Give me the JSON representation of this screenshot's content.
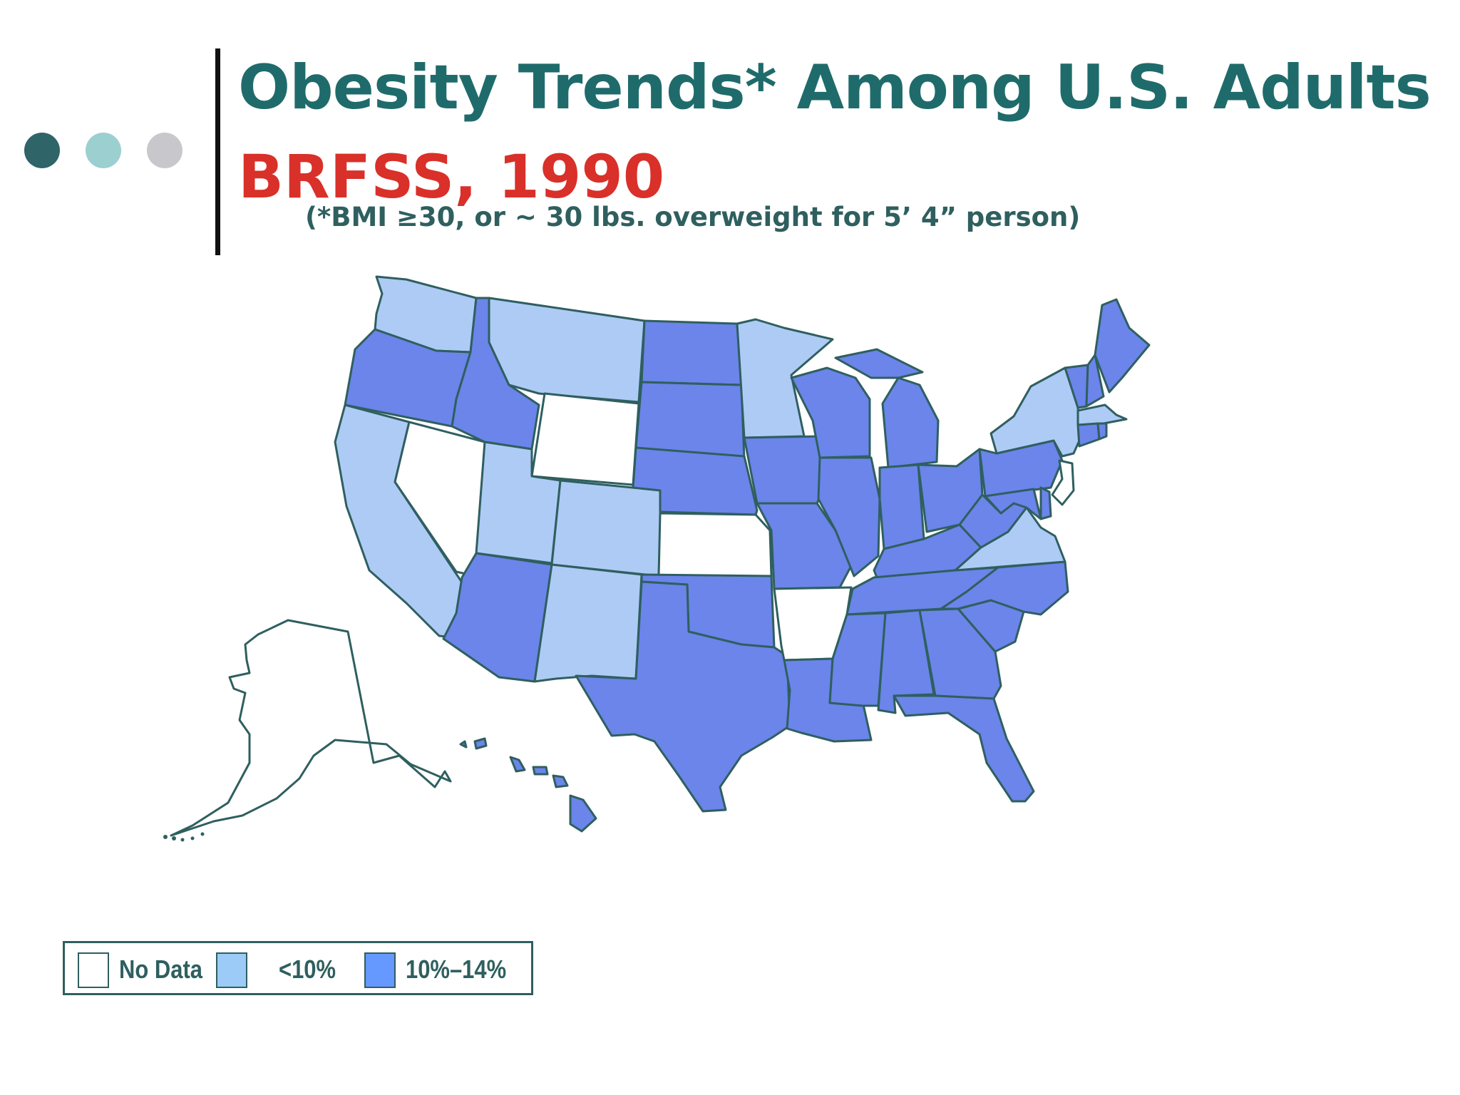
{
  "title": "Obesity Trends* Among U.S. Adults",
  "subtitle": "BRFSS, 1990",
  "note": "(*BMI ≥30, or ~ 30 lbs. overweight for 5’ 4” person)",
  "colors": {
    "title": "#1f6b6b",
    "subtitle": "#d9302a",
    "note": "#2f5f5f",
    "outline": "#2f5f5f",
    "dot1": "#2f6468",
    "dot2": "#9ccfd0",
    "dot3": "#c8c8cc",
    "no_data": "#ffffff",
    "lt10": "#aecbf6",
    "r10_14": "#6b85ea"
  },
  "legend": [
    {
      "label": "No Data",
      "category": "no_data",
      "swatch": "#ffffff"
    },
    {
      "label": "<10%",
      "category": "lt10",
      "swatch": "#9ccbf8"
    },
    {
      "label": "10%–14%",
      "category": "r10_14",
      "swatch": "#6699ff"
    }
  ],
  "states": {
    "WA": "lt10",
    "OR": "r10_14",
    "CA": "lt10",
    "NV": "no_data",
    "ID": "r10_14",
    "MT": "lt10",
    "WY": "no_data",
    "UT": "lt10",
    "CO": "lt10",
    "AZ": "r10_14",
    "NM": "lt10",
    "ND": "r10_14",
    "SD": "r10_14",
    "NE": "r10_14",
    "KS": "no_data",
    "OK": "r10_14",
    "TX": "r10_14",
    "MN": "lt10",
    "IA": "r10_14",
    "MO": "r10_14",
    "AR": "no_data",
    "LA": "r10_14",
    "WI": "r10_14",
    "IL": "r10_14",
    "MI": "r10_14",
    "IN": "r10_14",
    "OH": "r10_14",
    "KY": "r10_14",
    "TN": "r10_14",
    "MS": "r10_14",
    "AL": "r10_14",
    "GA": "r10_14",
    "FL": "r10_14",
    "SC": "r10_14",
    "NC": "r10_14",
    "VA": "lt10",
    "WV": "r10_14",
    "PA": "r10_14",
    "NY": "lt10",
    "VT": "r10_14",
    "NH": "r10_14",
    "ME": "r10_14",
    "MA": "lt10",
    "RI": "r10_14",
    "CT": "r10_14",
    "NJ": "no_data",
    "DE": "r10_14",
    "MD": "r10_14",
    "AK": "no_data",
    "HI": "r10_14"
  }
}
